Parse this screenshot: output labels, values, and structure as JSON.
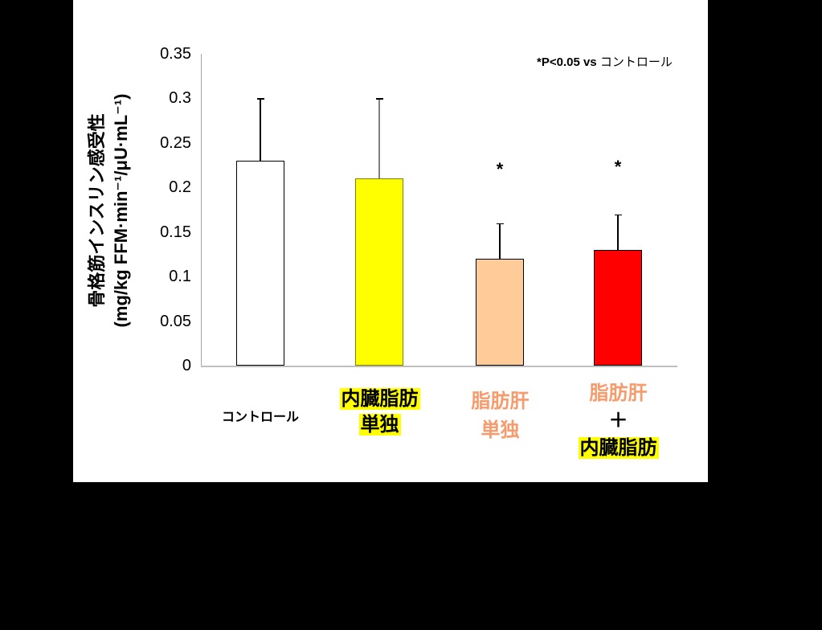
{
  "chart_data": {
    "type": "bar",
    "title": "",
    "ylabel_line1": "骨格筋インスリン感受性",
    "ylabel_line2": "(mg/kg FFM·min⁻¹/μU·mL⁻¹)",
    "xlabel": "",
    "ylim": [
      0,
      0.35
    ],
    "yticks": [
      "0",
      "0.05",
      "0.1",
      "0.15",
      "0.2",
      "0.25",
      "0.3",
      "0.35"
    ],
    "categories": [
      "コントロール",
      "内臓脂肪単独",
      "脂肪肝単独",
      "脂肪肝＋内臓脂肪"
    ],
    "values": [
      0.23,
      0.21,
      0.12,
      0.13
    ],
    "error_upper": [
      0.07,
      0.09,
      0.04,
      0.04
    ],
    "bar_colors": [
      "#ffffff",
      "#ffff00",
      "#ffcc99",
      "#ff0000"
    ],
    "significance": [
      "",
      "",
      "*",
      "*"
    ],
    "annotation": "*P<0.05 vs コントロール",
    "grid": false,
    "legend": "none"
  },
  "labels": {
    "note_bold": "*P<0.05 vs",
    "note_rest": " コントロール",
    "cat0": "コントロール",
    "cat1_line1": "内臓脂肪",
    "cat1_line2": "単独",
    "cat2_line1": "脂肪肝",
    "cat2_line2": "単独",
    "cat3_line1": "脂肪肝",
    "cat3_plus": "＋",
    "cat3_line3": "内臓脂肪",
    "star": "*"
  },
  "colors": {
    "highlight": "#ffff00",
    "orange_text": "#f79b6d",
    "background": "#000000",
    "panel": "#ffffff"
  }
}
